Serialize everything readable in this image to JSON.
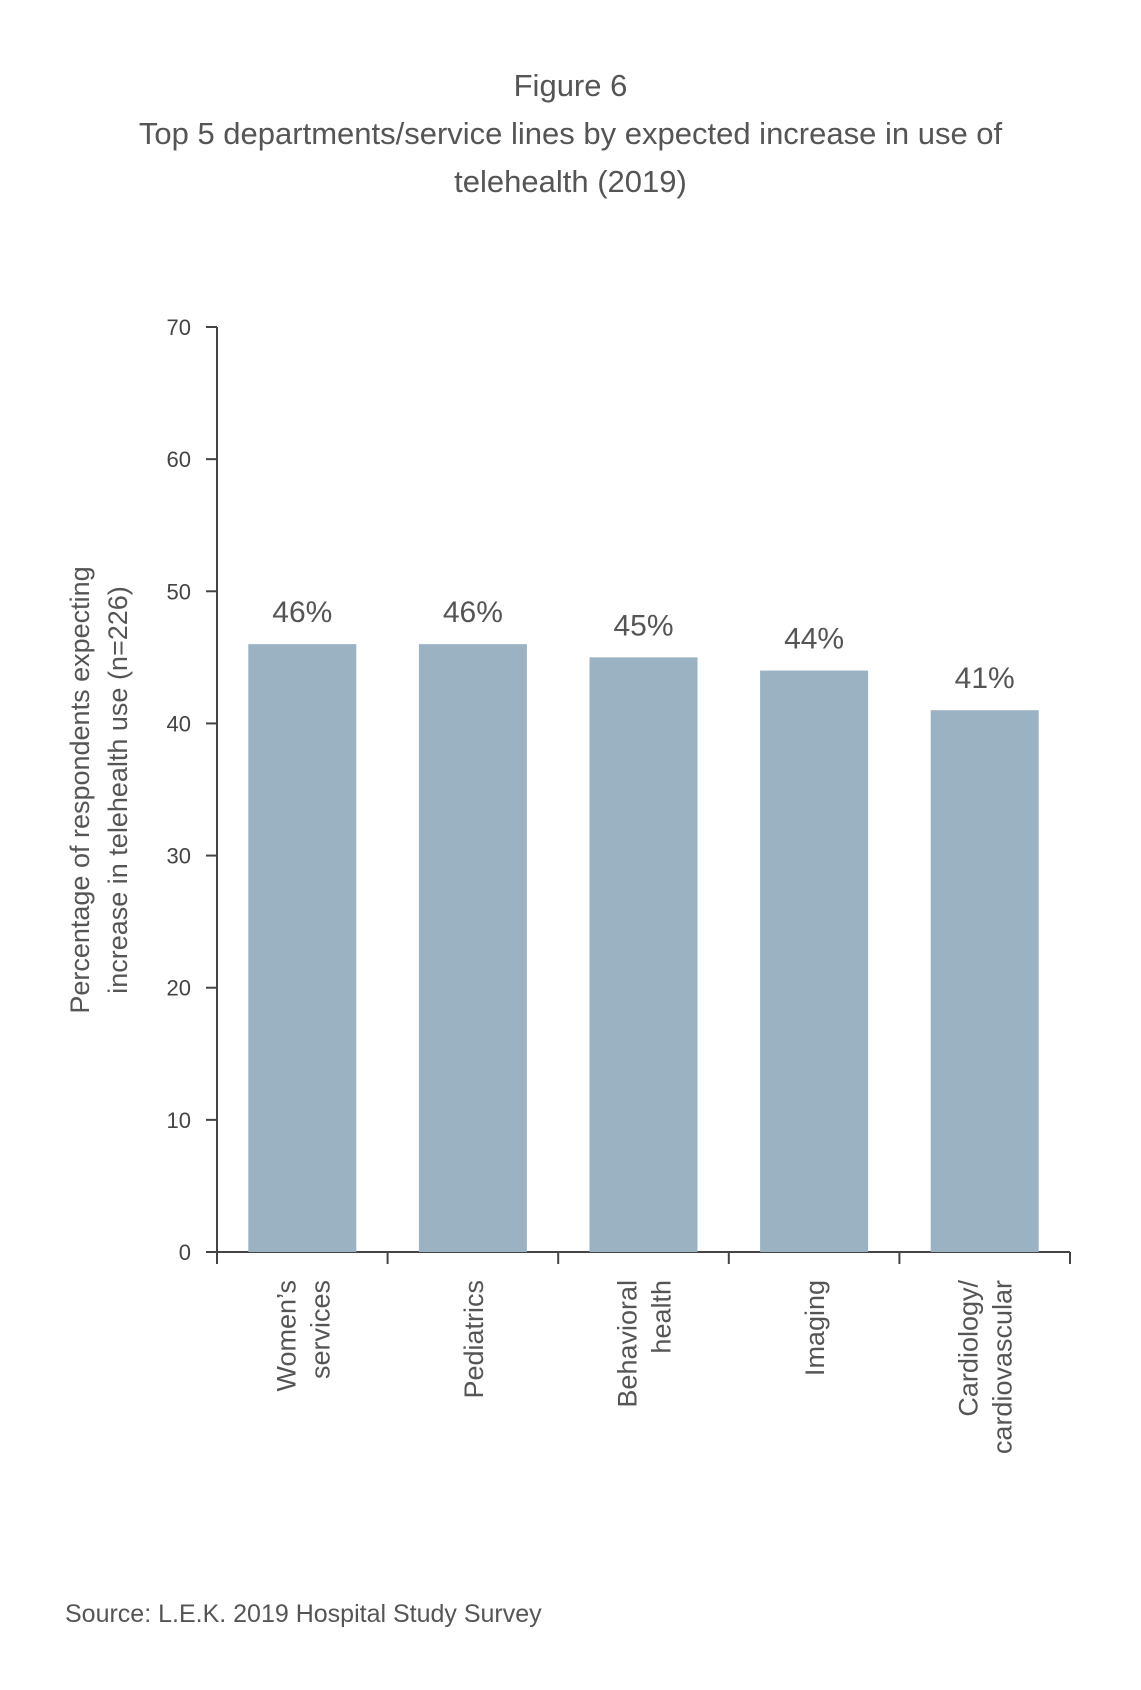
{
  "figure": {
    "label": "Figure 6",
    "title": "Top 5 departments/service lines by expected increase in use of telehealth (2019)"
  },
  "chart_data": {
    "type": "bar",
    "categories": [
      [
        "Women’s",
        "services"
      ],
      [
        "Pediatrics"
      ],
      [
        "Behavioral",
        "health"
      ],
      [
        "Imaging"
      ],
      [
        "Cardiology/",
        "cardiovascular"
      ]
    ],
    "values": [
      46,
      46,
      45,
      44,
      41
    ],
    "data_labels": [
      "46%",
      "46%",
      "45%",
      "44%",
      "41%"
    ],
    "ylabel": [
      "Percentage of respondents expecting",
      "increase in telehealth use (n=226)"
    ],
    "yticks": [
      0,
      10,
      20,
      30,
      40,
      50,
      60,
      70
    ],
    "ylim": [
      0,
      70
    ],
    "bar_color": "#9ab2c2",
    "axis_color": "#444444",
    "grid": false
  },
  "source": "Source: L.E.K. 2019 Hospital Study Survey"
}
